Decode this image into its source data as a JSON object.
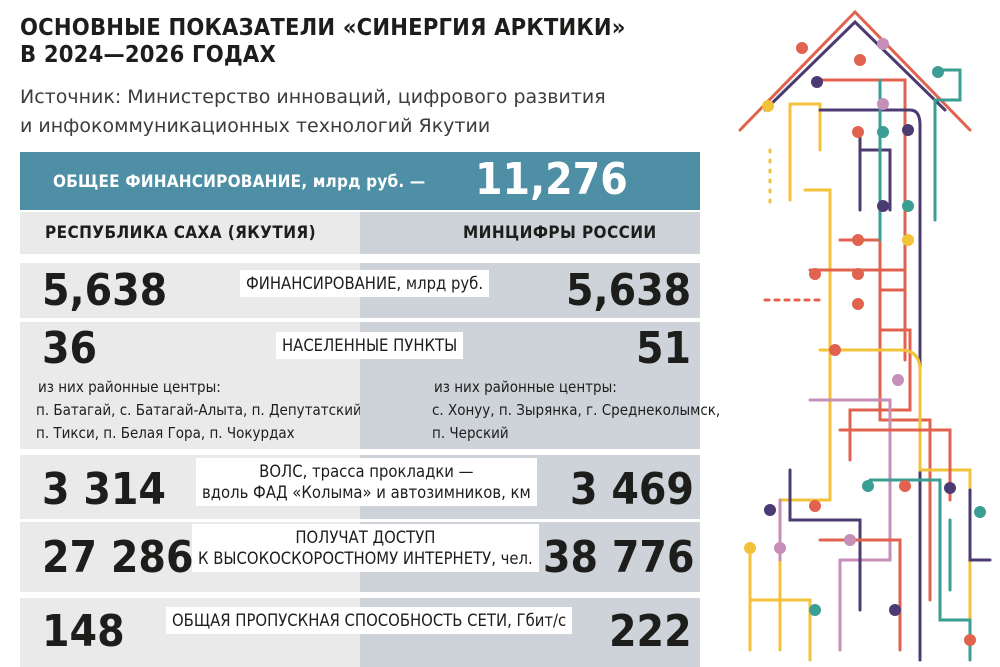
{
  "title_line1": "ОСНОВНЫЕ ПОКАЗАТЕЛИ «СИНЕРГИЯ АРКТИКИ»",
  "title_line2": "В 2024—2026 ГОДАХ",
  "source_line1": "Источник: Министерство инноваций, цифрового развития",
  "source_line2": "и инфокоммуникационных технологий Якутии",
  "total": {
    "label": "ОБЩЕЕ ФИНАНСИРОВАНИЕ, млрд руб. —",
    "value": "11,276"
  },
  "columns": {
    "left": "РЕСПУБЛИКА САХА (ЯКУТИЯ)",
    "right": "МИНЦИФРЫ РОССИИ"
  },
  "rows": {
    "funding": {
      "label": "ФИНАНСИРОВАНИЕ, млрд руб.",
      "left": "5,638",
      "right": "5,638"
    },
    "settlements": {
      "label": "НАСЕЛЕННЫЕ ПУНКТЫ",
      "left": "36",
      "right": "51",
      "left_note": [
        "из них районные центры:",
        "п. Батагай, с. Батагай-Алыта, п. Депутатский,",
        "п. Тикси, п. Белая Гора, п. Чокурдах"
      ],
      "right_note": [
        "из них районные центры:",
        "с. Хонуу, п. Зырянка, г. Среднеколымск,",
        "п. Черский"
      ]
    },
    "fiber": {
      "label": [
        "ВОЛС, трасса прокладки —",
        "вдоль ФАД «Колыма» и автозимников, км"
      ],
      "left": "3 314",
      "right": "3 469"
    },
    "access": {
      "label": [
        "ПОЛУЧАТ ДОСТУП",
        "К ВЫСОКОСКОРОСТНОМУ ИНТЕРНЕТУ, чел."
      ],
      "left": "27 286",
      "right": "38 776"
    },
    "bandwidth": {
      "label": "ОБЩАЯ ПРОПУСКНАЯ СПОСОБНОСТЬ СЕТИ, Гбит/с",
      "left": "148",
      "right": "222"
    }
  },
  "colors": {
    "accent": "#4e8fa6",
    "left_bg": "#eaeaea",
    "right_bg": "#cdd3d8"
  }
}
